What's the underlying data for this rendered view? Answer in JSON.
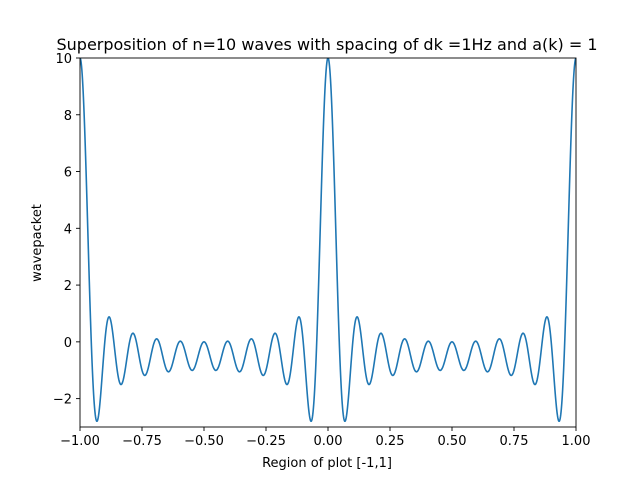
{
  "chart_data": {
    "type": "line",
    "title": "Superposition of n=10 waves with spacing of dk =1Hz and a(k) = 1",
    "xlabel": "Region of plot [-1,1]",
    "ylabel": "wavepacket",
    "xlim": [
      -1,
      1
    ],
    "ylim": [
      -3,
      10
    ],
    "x_ticks": [
      -1.0,
      -0.75,
      -0.5,
      -0.25,
      0.0,
      0.25,
      0.5,
      0.75,
      1.0
    ],
    "x_tick_labels": [
      "−1.00",
      "−0.75",
      "−0.50",
      "−0.25",
      "0.00",
      "0.25",
      "0.50",
      "0.75",
      "1.00"
    ],
    "y_ticks": [
      -2,
      0,
      2,
      4,
      6,
      8,
      10
    ],
    "y_tick_labels": [
      "−2",
      "0",
      "2",
      "4",
      "6",
      "8",
      "10"
    ],
    "grid": false,
    "legend": "none",
    "line_color": "#1f77b4",
    "series": [
      {
        "function": "sum over k=1..10 of cos(2*pi*k*x)",
        "n_waves": 10,
        "dk_hz": 1,
        "amplitude": 1,
        "x_start": -1,
        "x_end": 1
      }
    ]
  }
}
